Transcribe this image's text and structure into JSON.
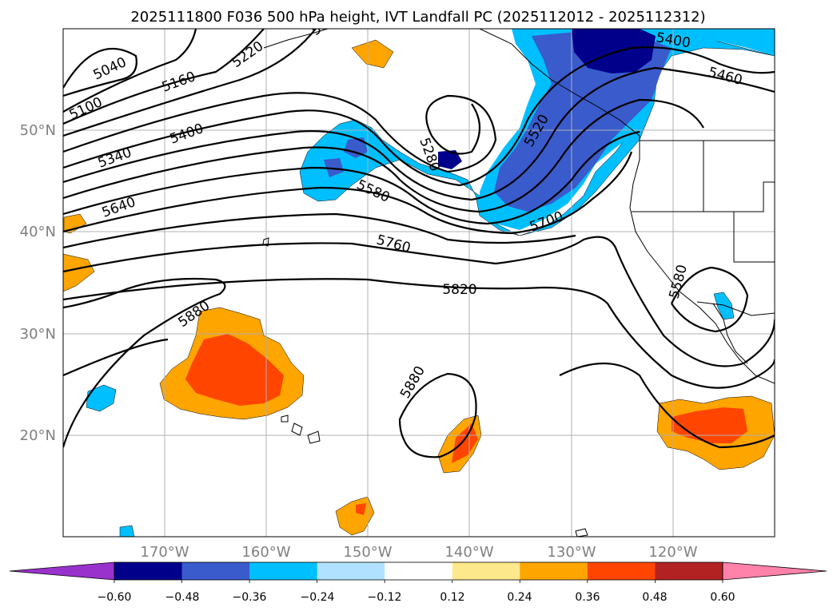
{
  "title": "2025111800 F036 500 hPa height, IVT Landfall PC (2025112012 - 2025112312)",
  "map": {
    "projection": "PlateCarree",
    "lon_range_deg": [
      -180,
      -110
    ],
    "lat_range_deg": [
      10,
      60
    ],
    "lon_ticks": [
      "170°W",
      "160°W",
      "150°W",
      "140°W",
      "130°W",
      "120°W"
    ],
    "lat_ticks": [
      "20°N",
      "30°N",
      "40°N",
      "50°N"
    ],
    "gridlines": true
  },
  "contours": {
    "variable": "500 hPa height",
    "labels": [
      "5040",
      "5160",
      "5220",
      "5280",
      "5100",
      "5340",
      "5400",
      "5640",
      "5580",
      "5280",
      "5520",
      "5700",
      "5760",
      "5820",
      "5880",
      "5880",
      "5580",
      "5400",
      "5460"
    ]
  },
  "shading": {
    "variable": "IVT Landfall PC",
    "features": [
      {
        "label": "negative anomaly band Gulf of Alaska / Pacific NW",
        "sign": "negative"
      },
      {
        "label": "positive anomaly west of Hawaii",
        "sign": "positive"
      },
      {
        "label": "positive anomaly near 140W 20N",
        "sign": "positive"
      },
      {
        "label": "positive anomaly off Mexico",
        "sign": "positive"
      }
    ]
  },
  "colorbar": {
    "ticks": [
      "−0.60",
      "−0.48",
      "−0.36",
      "−0.24",
      "−0.12",
      "0.12",
      "0.24",
      "0.36",
      "0.48",
      "0.60"
    ],
    "colors": [
      "#9932cc",
      "#00008b",
      "#3a5bcc",
      "#00bfff",
      "#b0e2ff",
      "#ffffff",
      "#fde98b",
      "#ffa500",
      "#ff4500",
      "#b22222",
      "#ff82ab"
    ],
    "extend": "both"
  }
}
